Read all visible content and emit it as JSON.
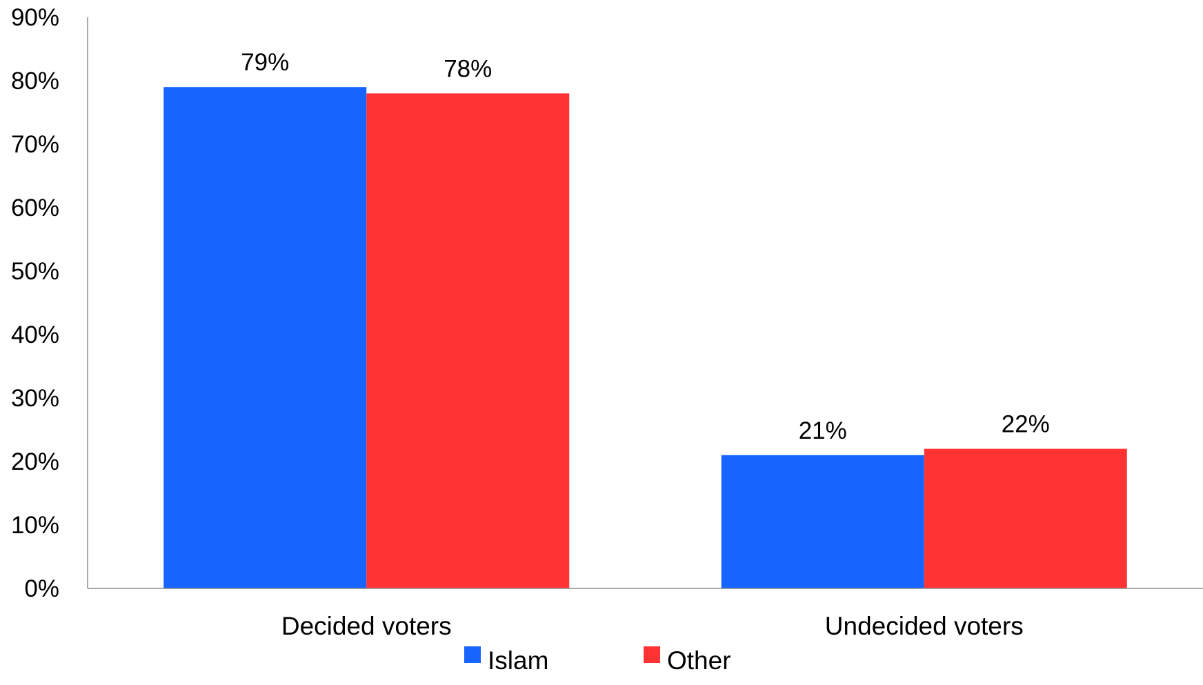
{
  "chart_data": {
    "type": "bar",
    "categories": [
      "Decided voters",
      "Undecided voters"
    ],
    "series": [
      {
        "name": "Islam",
        "values": [
          79,
          21
        ],
        "color": "#1764FF",
        "labels": [
          "79%",
          "21%"
        ]
      },
      {
        "name": "Other",
        "values": [
          78,
          22
        ],
        "color": "#FF3333",
        "labels": [
          "78%",
          "22%"
        ]
      }
    ],
    "y_ticks": [
      "0%",
      "10%",
      "20%",
      "30%",
      "40%",
      "50%",
      "60%",
      "70%",
      "80%",
      "90%"
    ],
    "ylim": [
      0,
      90
    ],
    "y_unit": "%",
    "title": "",
    "xlabel": "",
    "ylabel": "",
    "grid": false,
    "legend_position": "bottom-center"
  }
}
